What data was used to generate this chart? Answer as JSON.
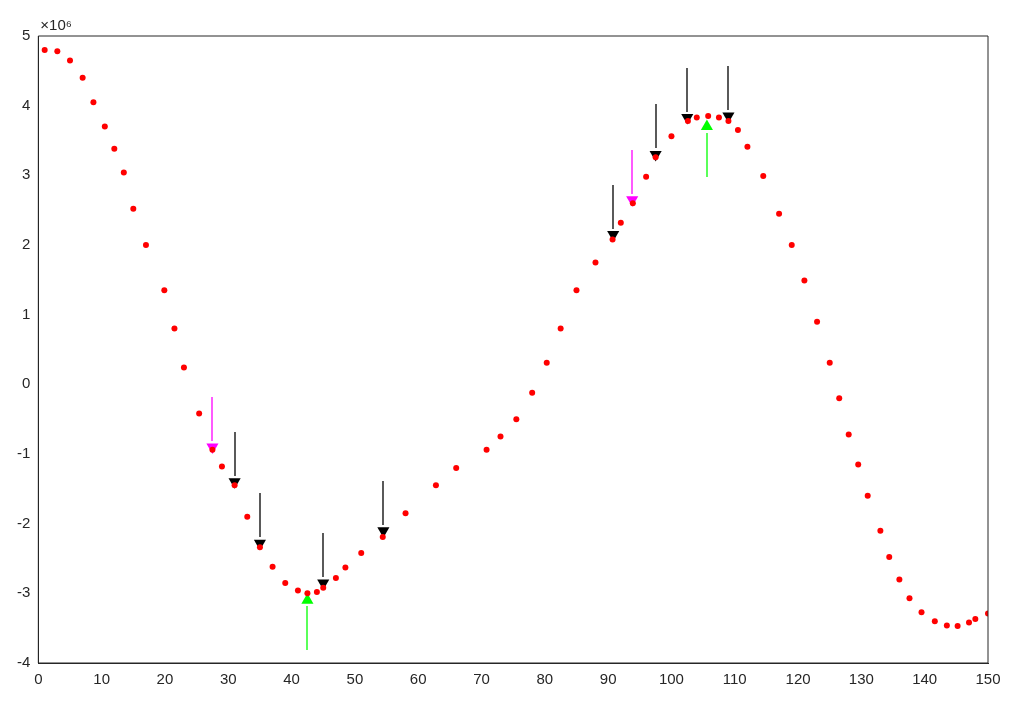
{
  "chart_data": {
    "type": "scatter",
    "marker": "circle",
    "grid": false,
    "legend": false,
    "xlim": [
      0,
      150
    ],
    "xticks": [
      0,
      10,
      20,
      30,
      40,
      50,
      60,
      70,
      80,
      90,
      100,
      110,
      120,
      130,
      140,
      150
    ],
    "ylim": [
      -4,
      5
    ],
    "yticks": [
      -4,
      -3,
      -2,
      -1,
      0,
      1,
      2,
      3,
      4,
      5
    ],
    "annotations": [
      "×10⁶"
    ],
    "series": [
      {
        "color": "#ff0000",
        "x": [
          1,
          3,
          5,
          7,
          8.7,
          10.5,
          12,
          13.5,
          15,
          17,
          19.9,
          21.5,
          23,
          25.4,
          27.5,
          29,
          31,
          33,
          35,
          37,
          39,
          41,
          42.5,
          44,
          45,
          47,
          48.5,
          51,
          54.4,
          58,
          62.8,
          66,
          70.8,
          73,
          75.5,
          78,
          80.3,
          82.5,
          85,
          88,
          90.7,
          92,
          93.9,
          96,
          97.5,
          100,
          102.6,
          104,
          105.8,
          107.5,
          109,
          110.5,
          112,
          114.5,
          117,
          119,
          121,
          123,
          125,
          126.5,
          128,
          129.5,
          131,
          133,
          134.4,
          136,
          137.6,
          139.5,
          141.6,
          143.5,
          145.2,
          147,
          148,
          150
        ],
        "values": [
          4.8,
          4.78,
          4.65,
          4.4,
          4.05,
          3.7,
          3.38,
          3.04,
          2.52,
          2,
          1.35,
          0.8,
          0.24,
          -0.42,
          -0.94,
          -1.18,
          -1.45,
          -1.9,
          -2.34,
          -2.62,
          -2.85,
          -2.96,
          -3,
          -2.98,
          -2.92,
          -2.78,
          -2.63,
          -2.42,
          -2.19,
          -1.85,
          -1.45,
          -1.2,
          -0.94,
          -0.75,
          -0.5,
          -0.12,
          0.31,
          0.8,
          1.35,
          1.75,
          2.08,
          2.32,
          2.6,
          2.98,
          3.26,
          3.56,
          3.78,
          3.83,
          3.85,
          3.83,
          3.78,
          3.65,
          3.41,
          2.99,
          2.45,
          2,
          1.49,
          0.9,
          0.31,
          -0.2,
          -0.72,
          -1.15,
          -1.6,
          -2.1,
          -2.48,
          -2.8,
          -3.07,
          -3.27,
          -3.4,
          -3.46,
          -3.47,
          -3.42,
          -3.37,
          -3.29
        ]
      },
      {
        "color": "#000000",
        "marker": "triangle",
        "x": [
          31,
          35,
          45,
          54.5,
          90.8,
          97.5,
          102.5,
          109
        ],
        "values": [
          -1.4,
          -2.28,
          -2.85,
          -2.1,
          2.15,
          3.3,
          3.83,
          3.85
        ]
      },
      {
        "color": "#ff00ff",
        "marker": "triangle",
        "x": [
          27.5,
          93.8
        ],
        "values": [
          -0.9,
          2.65
        ]
      },
      {
        "color": "#00ff00",
        "marker": "triangle",
        "x": [
          42.5,
          105.6
        ],
        "values": [
          -3.1,
          3.7
        ]
      }
    ]
  }
}
